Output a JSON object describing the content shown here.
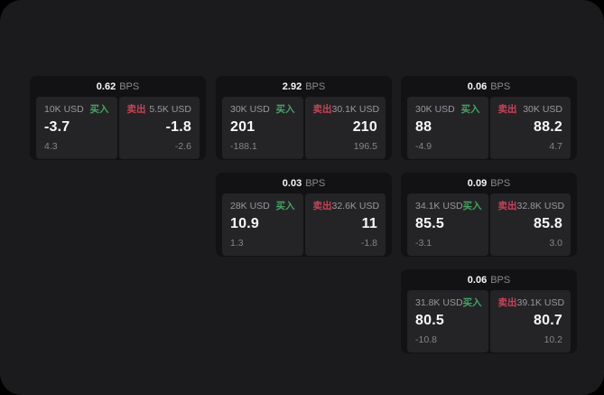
{
  "labels": {
    "bps_unit": "BPS",
    "buy": "买入",
    "sell": "卖出"
  },
  "colors": {
    "outer_background": "#000000",
    "panel_background": "#1b1b1d",
    "card_background": "#121214",
    "tile_background": "#242427",
    "buy_green": "#44a45f",
    "sell_red": "#c94256",
    "primary_text": "#f7f7f8",
    "muted_text": "#98989d"
  },
  "cards": [
    {
      "bps": "0.62",
      "buy": {
        "amount": "10K USD",
        "value": "-3.7",
        "sub": "4.3"
      },
      "sell": {
        "amount": "5.5K USD",
        "value": "-1.8",
        "sub": "-2.6"
      }
    },
    {
      "bps": "2.92",
      "buy": {
        "amount": "30K USD",
        "value": "201",
        "sub": "-188.1"
      },
      "sell": {
        "amount": "30.1K USD",
        "value": "210",
        "sub": "196.5"
      }
    },
    {
      "bps": "0.06",
      "buy": {
        "amount": "30K USD",
        "value": "88",
        "sub": "-4.9"
      },
      "sell": {
        "amount": "30K USD",
        "value": "88.2",
        "sub": "4.7"
      }
    },
    {
      "bps": "0.03",
      "buy": {
        "amount": "28K USD",
        "value": "10.9",
        "sub": "1.3"
      },
      "sell": {
        "amount": "32.6K USD",
        "value": "11",
        "sub": "-1.8"
      }
    },
    {
      "bps": "0.09",
      "buy": {
        "amount": "34.1K USD",
        "value": "85.5",
        "sub": "-3.1"
      },
      "sell": {
        "amount": "32.8K USD",
        "value": "85.8",
        "sub": "3.0"
      }
    },
    {
      "bps": "0.06",
      "buy": {
        "amount": "31.8K USD",
        "value": "80.5",
        "sub": "-10.8"
      },
      "sell": {
        "amount": "39.1K USD",
        "value": "80.7",
        "sub": "10.2"
      }
    }
  ]
}
